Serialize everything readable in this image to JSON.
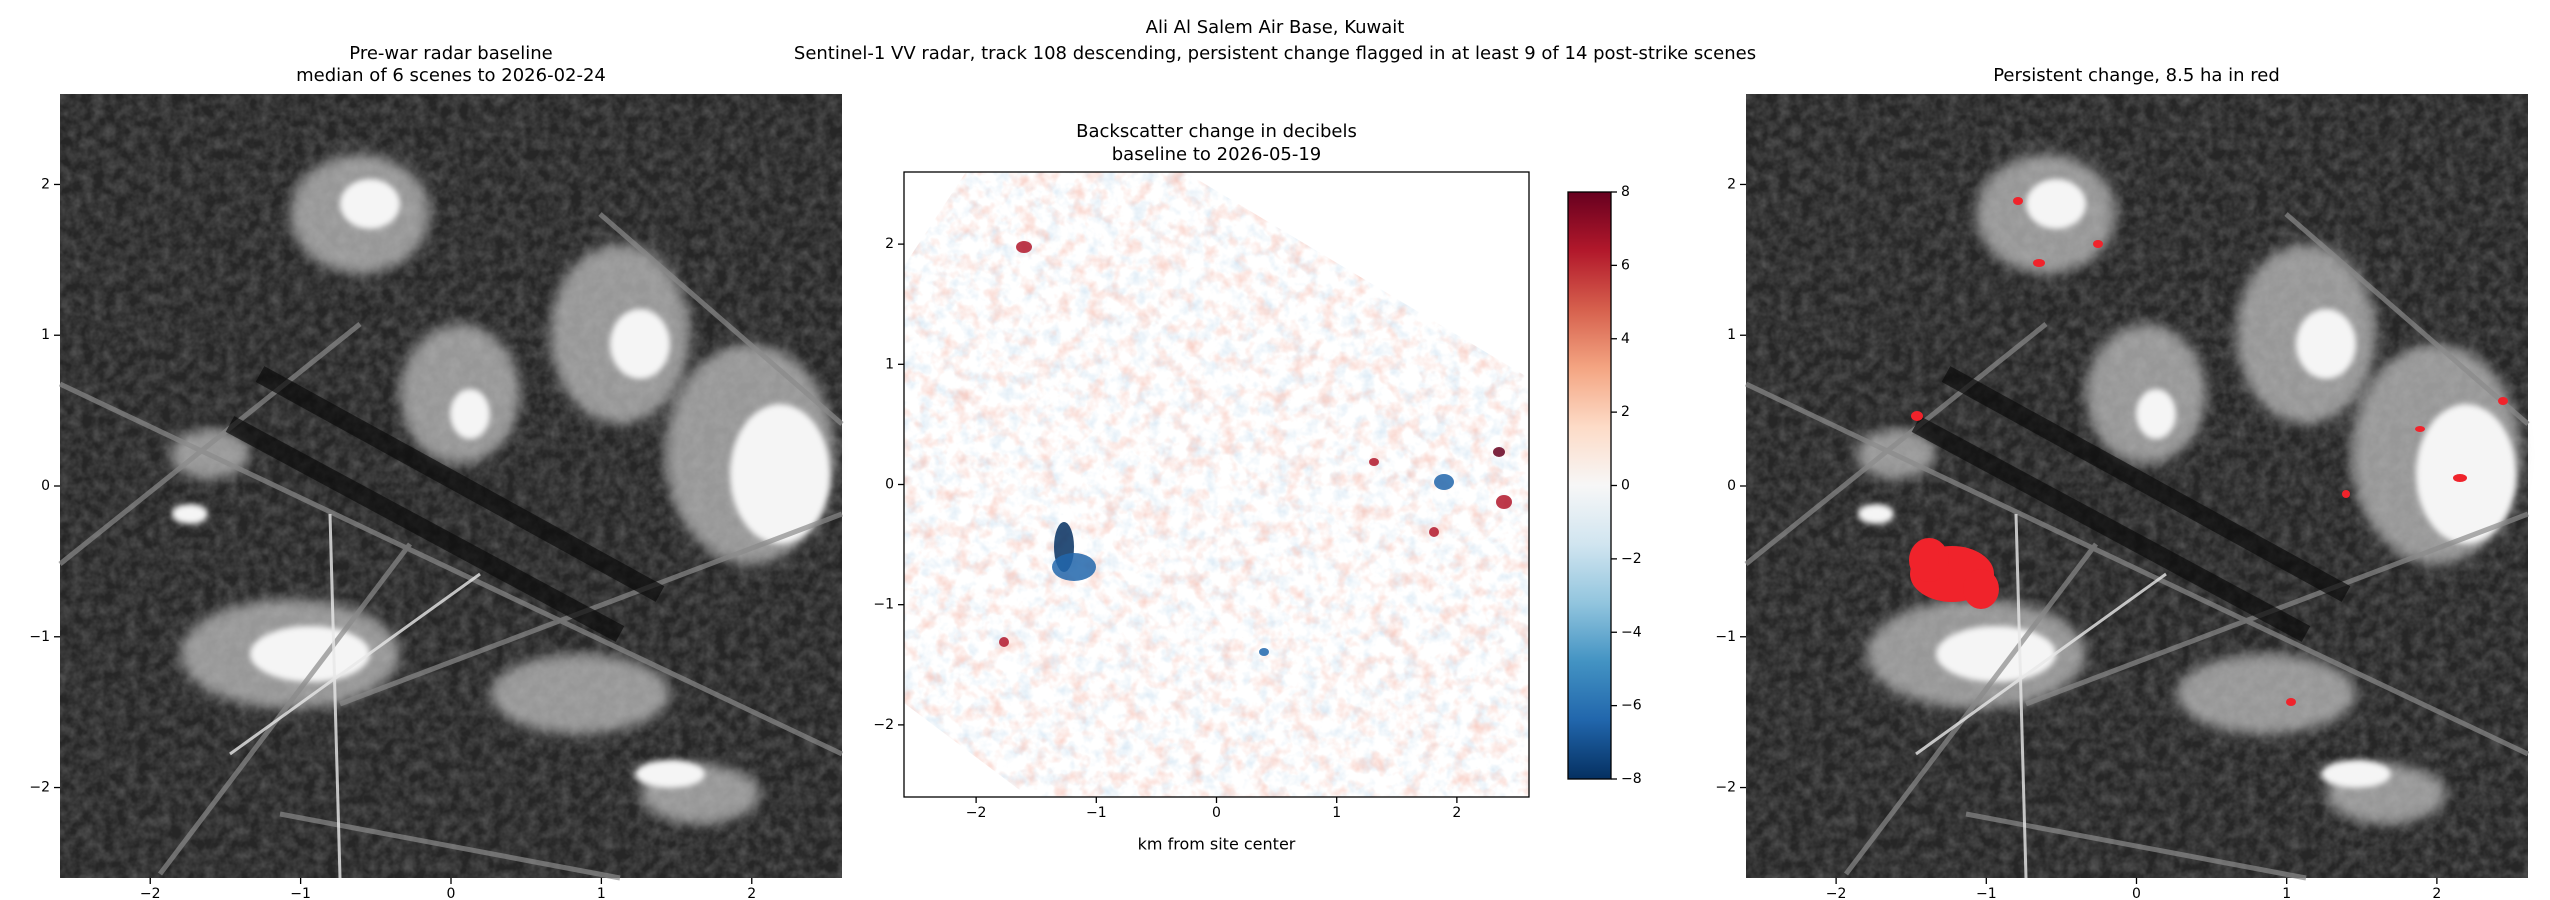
{
  "figure": {
    "title": "Ali Al Salem Air Base, Kuwait",
    "subtitle": "Sentinel-1 VV radar, track 108 descending, persistent change flagged in at least 9 of 14 post-strike scenes"
  },
  "chart_data": [
    {
      "type": "image",
      "title": "Pre-war radar baseline",
      "subtitle": "median of 6 scenes to 2026-02-24",
      "xlim": [
        -2.6,
        2.6
      ],
      "ylim": [
        -2.6,
        2.6
      ],
      "xticks": [
        {
          "value": -2,
          "label": "−2"
        },
        {
          "value": -1,
          "label": "−1"
        },
        0,
        1,
        2
      ],
      "yticks": [
        {
          "value": -2,
          "label": "−2"
        },
        {
          "value": -1,
          "label": "−1"
        },
        0,
        1,
        2
      ]
    },
    {
      "type": "heatmap",
      "title": "Backscatter change in decibels",
      "subtitle": "baseline to 2026-05-19",
      "xlabel": "km from site center",
      "xlim": [
        -2.6,
        2.6
      ],
      "ylim": [
        -2.6,
        2.6
      ],
      "xticks": [
        {
          "value": -2,
          "label": "−2"
        },
        {
          "value": -1,
          "label": "−1"
        },
        0,
        1,
        2
      ],
      "yticks": [
        {
          "value": -2,
          "label": "−2"
        },
        {
          "value": -1,
          "label": "−1"
        },
        0,
        1,
        2
      ],
      "clim": [
        -8,
        8
      ],
      "cticks": [
        {
          "value": -8,
          "label": "−8"
        },
        {
          "value": -6,
          "label": "−6"
        },
        {
          "value": -4,
          "label": "−4"
        },
        {
          "value": -2,
          "label": "−2"
        },
        0,
        2,
        4,
        6,
        8
      ],
      "colormap": [
        "#053061",
        "#2166ac",
        "#4393c3",
        "#92c5de",
        "#d1e5f0",
        "#f7f7f7",
        "#fddbc7",
        "#f4a582",
        "#d6604d",
        "#b2182b",
        "#67001f"
      ]
    },
    {
      "type": "image",
      "title": "Persistent change, 8.5 ha in red",
      "overlay_color": "#f0232b",
      "xlim": [
        -2.6,
        2.6
      ],
      "ylim": [
        -2.6,
        2.6
      ],
      "xticks": [
        {
          "value": -2,
          "label": "−2"
        },
        {
          "value": -1,
          "label": "−1"
        },
        0,
        1,
        2
      ],
      "yticks": [
        {
          "value": -2,
          "label": "−2"
        },
        {
          "value": -1,
          "label": "−1"
        },
        0,
        1,
        2
      ]
    }
  ]
}
